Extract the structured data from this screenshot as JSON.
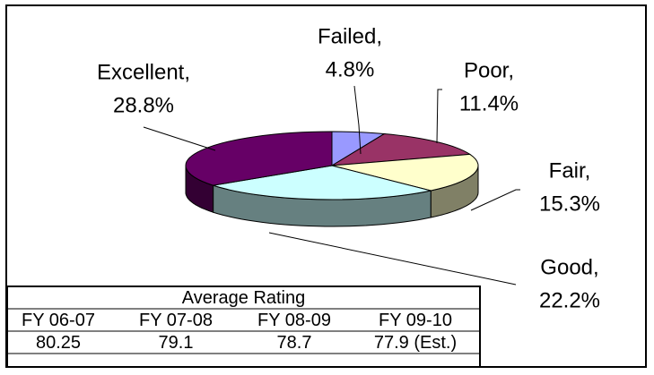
{
  "chart_data": {
    "type": "pie3d",
    "categories": [
      "Failed,",
      "Poor,",
      "Fair,",
      "Good,",
      "Excellent,"
    ],
    "values": [
      4.8,
      11.4,
      15.3,
      22.2,
      28.8
    ],
    "value_labels": [
      "4.8%",
      "11.4%",
      "15.3%",
      "22.2%",
      "28.8%"
    ],
    "colors": [
      "#9999ff",
      "#993366",
      "#ffffcc",
      "#ccffff",
      "#660066"
    ]
  },
  "table": {
    "title": "Average Rating",
    "columns": [
      "FY 06-07",
      "FY 07-08",
      "FY 08-09",
      "FY 09-10"
    ],
    "rows": [
      [
        "80.25",
        "79.1",
        "78.7",
        "77.9 (Est.)"
      ]
    ]
  }
}
